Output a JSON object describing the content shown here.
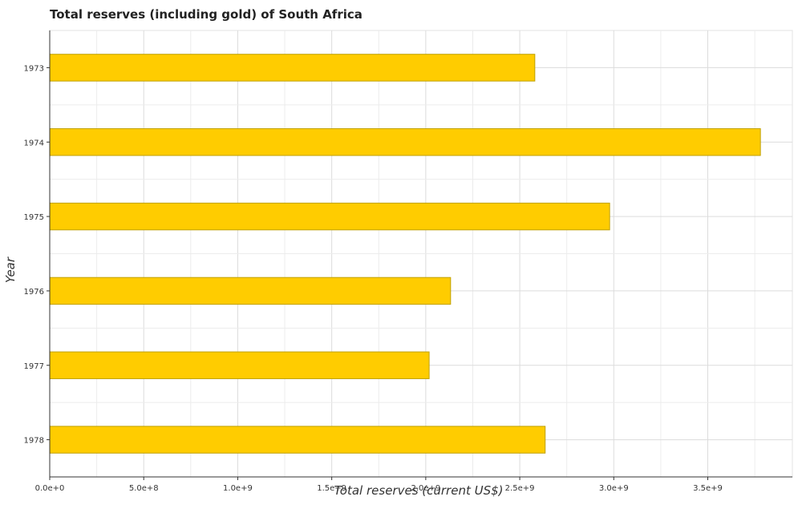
{
  "chart_data": {
    "type": "bar",
    "orientation": "horizontal",
    "title": "Total reserves (including gold) of South Africa",
    "xlabel": "Total reserves (current US$)",
    "ylabel": "Year",
    "categories": [
      "1973",
      "1974",
      "1975",
      "1976",
      "1977",
      "1978"
    ],
    "values": [
      2580000000,
      3780000000,
      2978000000,
      2132000000,
      2018000000,
      2635000000
    ],
    "xlim": [
      0,
      3950000000
    ],
    "xticks": [
      0,
      500000000,
      1000000000,
      1500000000,
      2000000000,
      2500000000,
      3000000000,
      3500000000
    ],
    "xtick_labels": [
      "0.0e+0",
      "5.0e+8",
      "1.0e+9",
      "1.5e+9",
      "2.0e+9",
      "2.5e+9",
      "3.0e+9",
      "3.5e+9"
    ],
    "bar_color": "#FFCC00",
    "bar_edge_color": "#BFA000",
    "grid": true,
    "legend": false
  }
}
